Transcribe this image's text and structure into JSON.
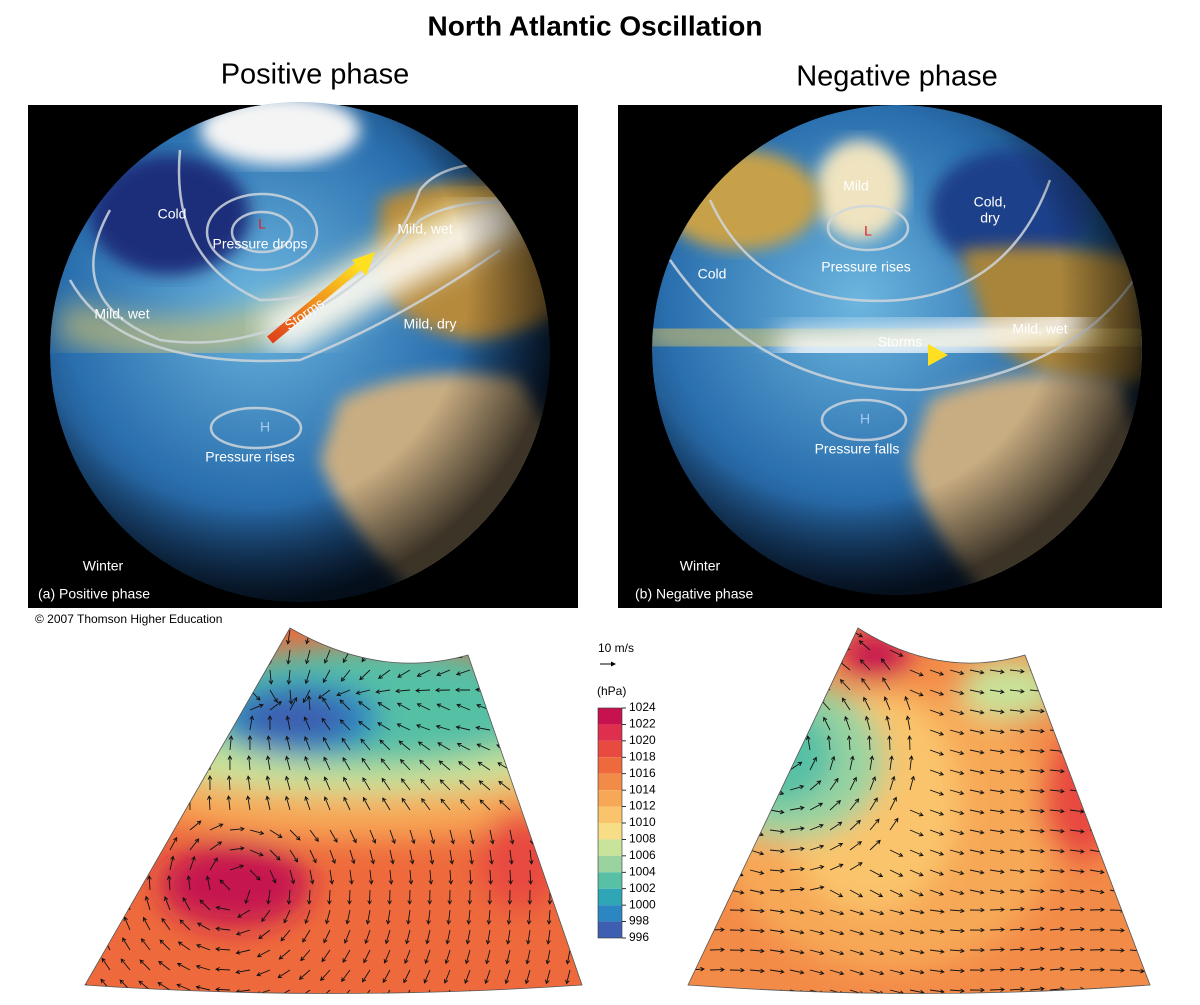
{
  "title": "North Atlantic Oscillation",
  "panels": [
    {
      "heading": "Positive phase",
      "labels": [
        "Cold",
        "L",
        "Pressure drops",
        "Mild, wet",
        "Storms",
        "Mild, wet",
        "Mild, dry",
        "H",
        "Pressure rises"
      ],
      "season": "Winter",
      "caption": "(a) Positive phase"
    },
    {
      "heading": "Negative phase",
      "labels": [
        "Mild",
        "Cold,",
        "dry",
        "L",
        "Pressure rises",
        "Cold",
        "Storms",
        "Mild, wet",
        "H",
        "Pressure falls"
      ],
      "season": "Winter",
      "caption": "(b) Negative phase"
    }
  ],
  "credit": "© 2007 Thomson Higher Education",
  "wind_scale": "10 m/s",
  "colorbar": {
    "unit": "(hPa)",
    "ticks": [
      1024,
      1022,
      1020,
      1018,
      1016,
      1014,
      1012,
      1010,
      1008,
      1006,
      1004,
      1002,
      1000,
      998,
      996
    ],
    "colors": [
      "#c6134f",
      "#de2f4f",
      "#e84a40",
      "#ee6a3c",
      "#f38b48",
      "#f7a857",
      "#fac46c",
      "#f7dd86",
      "#c8e39a",
      "#99d3a0",
      "#57c0a5",
      "#2ea6b5",
      "#2c86c1",
      "#3e5fb1"
    ]
  }
}
